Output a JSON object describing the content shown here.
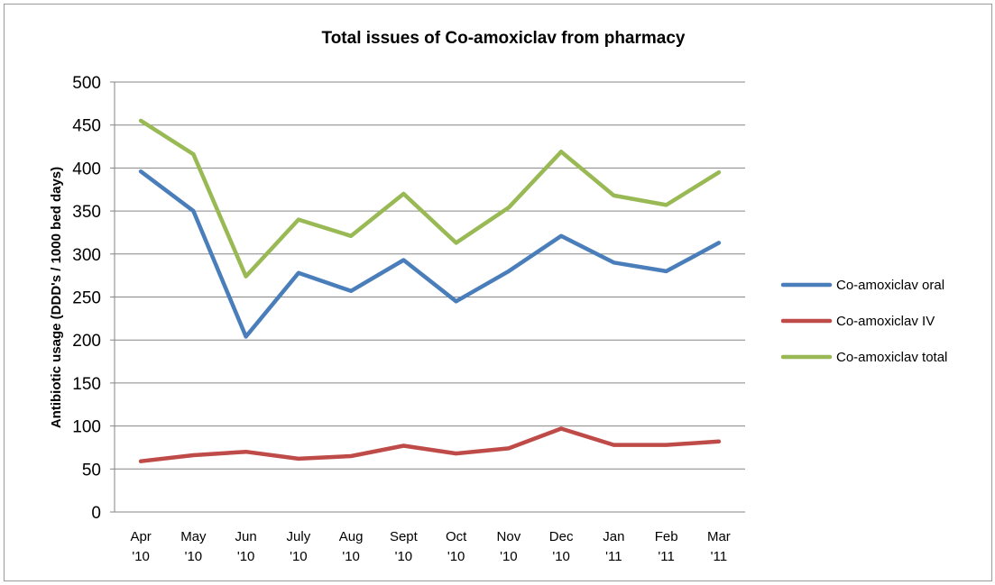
{
  "chart_data": {
    "type": "line",
    "title": "Total issues of Co-amoxiclav from pharmacy",
    "ylabel": "Antibiotic usage (DDD's / 1000 bed days)",
    "xlabel": "",
    "ylim": [
      0,
      500
    ],
    "yticks": [
      "0",
      "50",
      "100",
      "150",
      "200",
      "250",
      "300",
      "350",
      "400",
      "450",
      "500"
    ],
    "ytick_values": [
      0,
      50,
      100,
      150,
      200,
      250,
      300,
      350,
      400,
      450,
      500
    ],
    "grid": true,
    "legend_position": "right",
    "categories": [
      [
        "Apr",
        "'10"
      ],
      [
        "May",
        "'10"
      ],
      [
        "Jun",
        "'10"
      ],
      [
        "July",
        "'10"
      ],
      [
        "Aug",
        "'10"
      ],
      [
        "Sept",
        "'10"
      ],
      [
        "Oct",
        "'10"
      ],
      [
        "Nov",
        "'10"
      ],
      [
        "Dec",
        "'10"
      ],
      [
        "Jan",
        "'11"
      ],
      [
        "Feb",
        "'11"
      ],
      [
        "Mar",
        "'11"
      ]
    ],
    "series": [
      {
        "name": "Co-amoxiclav oral",
        "color": "#4a7ebb",
        "values": [
          396,
          350,
          204,
          278,
          257,
          293,
          245,
          280,
          321,
          290,
          280,
          313
        ]
      },
      {
        "name": "Co-amoxiclav IV",
        "color": "#be4b48",
        "values": [
          59,
          66,
          70,
          62,
          65,
          77,
          68,
          74,
          97,
          78,
          78,
          82
        ]
      },
      {
        "name": "Co-amoxiclav total",
        "color": "#98b954",
        "values": [
          455,
          416,
          274,
          340,
          321,
          370,
          313,
          354,
          419,
          368,
          357,
          395
        ]
      }
    ]
  }
}
